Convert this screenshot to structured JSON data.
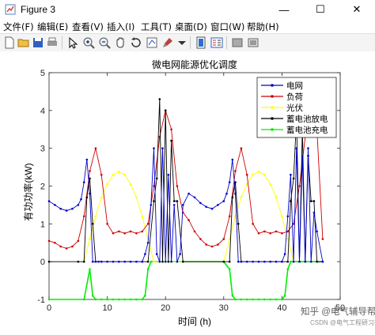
{
  "window": {
    "title": "Figure 3",
    "minimize": "—",
    "maximize": "☐",
    "close": "✕"
  },
  "menu": [
    "文件(F)",
    "编辑(E)",
    "查看(V)",
    "插入(I)",
    "工具(T)",
    "桌面(D)",
    "窗口(W)",
    "帮助(H)"
  ],
  "toolbar_icons": [
    "new-file-icon",
    "open-folder-icon",
    "save-icon",
    "print-icon",
    "pointer-icon",
    "zoom-in-icon",
    "zoom-out-icon",
    "pan-icon",
    "rotate-icon",
    "data-cursor-icon",
    "brush-icon",
    "colorbar-icon",
    "legend-icon",
    "hide-tools-icon",
    "show-tools-icon"
  ],
  "watermark": {
    "main": "知乎 @电气辅导帮",
    "sub": "CSDN @电气工程研习社"
  },
  "chart_data": {
    "type": "line",
    "title": "微电网能源优化调度",
    "xlabel": "时间 (h)",
    "ylabel": "有功功率(kW)",
    "xlim": [
      0,
      50
    ],
    "ylim": [
      -1,
      5
    ],
    "xticks": [
      0,
      10,
      20,
      30,
      40,
      50
    ],
    "yticks": [
      -1,
      0,
      1,
      2,
      3,
      4,
      5
    ],
    "legend_position": "top-right",
    "series": [
      {
        "name": "电网",
        "color": "#0000cc",
        "x": [
          0,
          1,
          2,
          3,
          4,
          5,
          5.5,
          6,
          6.5,
          7,
          7.5,
          8,
          8.5,
          9,
          10,
          11,
          12,
          13,
          14,
          15,
          16,
          16.5,
          17,
          17.5,
          18,
          18.5,
          19,
          19.5,
          20,
          20.5,
          21,
          21.5,
          22,
          22.5,
          23,
          24,
          25,
          26,
          27,
          28,
          29,
          30,
          30.5,
          31,
          31.5,
          32,
          32.5,
          33,
          34,
          35,
          36,
          37,
          38,
          39,
          40,
          40.5,
          41,
          41.5,
          42,
          42.5,
          43,
          43.5,
          44,
          44.5,
          45,
          45.5,
          46,
          47
        ],
        "y": [
          1.6,
          1.5,
          1.4,
          1.35,
          1.4,
          1.5,
          1.65,
          2.1,
          2.7,
          1.8,
          0,
          0,
          0,
          0,
          0,
          0,
          0,
          0,
          0,
          0,
          0,
          0.2,
          0.5,
          1.5,
          3.0,
          0.2,
          0,
          3.0,
          0,
          2.3,
          0,
          1.5,
          0,
          0.2,
          1.5,
          1.8,
          1.7,
          1.55,
          1.45,
          1.4,
          1.5,
          1.6,
          1.8,
          2.1,
          2.7,
          1.8,
          0,
          0,
          0,
          0,
          0,
          0,
          0,
          0,
          0,
          0.2,
          1.2,
          2.3,
          0,
          3.0,
          0,
          2.8,
          0,
          3.0,
          0,
          1.3,
          0.8,
          0
        ]
      },
      {
        "name": "负荷",
        "color": "#cc0000",
        "x": [
          0,
          1,
          2,
          3,
          4,
          5,
          6,
          7,
          8,
          9,
          10,
          11,
          12,
          13,
          14,
          15,
          16,
          17,
          18,
          19,
          20,
          21,
          22,
          23,
          24,
          25,
          26,
          27,
          28,
          29,
          30,
          31,
          32,
          33,
          34,
          35,
          36,
          37,
          38,
          39,
          40,
          41,
          42,
          43,
          44,
          45,
          46,
          47
        ],
        "y": [
          0.55,
          0.5,
          0.4,
          0.35,
          0.4,
          0.55,
          1.2,
          2.4,
          3.0,
          2.3,
          1.0,
          0.75,
          0.8,
          0.75,
          0.8,
          0.75,
          0.8,
          1.0,
          2.0,
          3.3,
          4.0,
          3.5,
          2.0,
          1.3,
          1.1,
          0.8,
          0.6,
          0.45,
          0.4,
          0.45,
          0.6,
          1.2,
          2.4,
          3.0,
          2.3,
          1.0,
          0.75,
          0.8,
          0.75,
          0.8,
          0.75,
          0.8,
          1.0,
          2.0,
          3.3,
          4.0,
          3.5,
          0.6
        ]
      },
      {
        "name": "光伏",
        "color": "#ffff00",
        "x": [
          6,
          7,
          8,
          9,
          10,
          11,
          12,
          13,
          14,
          15,
          16,
          17,
          18,
          30,
          31,
          32,
          33,
          34,
          35,
          36,
          37,
          38,
          39,
          40,
          41,
          42
        ],
        "y": [
          0,
          0.6,
          1.2,
          1.7,
          2.05,
          2.3,
          2.38,
          2.3,
          2.05,
          1.7,
          1.2,
          0.6,
          0,
          0,
          0.6,
          1.2,
          1.7,
          2.05,
          2.3,
          2.38,
          2.3,
          2.05,
          1.7,
          1.2,
          0.6,
          0
        ]
      },
      {
        "name": "蓄电池放电",
        "color": "#000000",
        "x": [
          0,
          5,
          6,
          6.5,
          7,
          7.5,
          8,
          9,
          16,
          17,
          18,
          18.5,
          19,
          19.5,
          20,
          20.5,
          21,
          21.5,
          22,
          23,
          30,
          31,
          31.5,
          32,
          32.5,
          33,
          40,
          41,
          41.5,
          42,
          42.5,
          43,
          43.5,
          44,
          44.5,
          45,
          45.5,
          46,
          47
        ],
        "y": [
          0,
          0,
          0,
          1.7,
          2.2,
          1.0,
          0,
          0,
          0,
          0,
          1.6,
          2.2,
          4.3,
          0,
          4.0,
          0,
          3.2,
          1.6,
          1.6,
          0,
          0,
          0,
          1.7,
          2.1,
          1.0,
          0,
          0,
          0,
          1.6,
          2.2,
          3.8,
          0,
          3.5,
          0,
          2.8,
          1.6,
          1.6,
          0,
          0
        ]
      },
      {
        "name": "蓄电池充电",
        "color": "#00ee00",
        "x": [
          0,
          6,
          7,
          7.5,
          8,
          9,
          10,
          11,
          12,
          13,
          14,
          15,
          16,
          16.5,
          17,
          17.5,
          18,
          19,
          23,
          30,
          31,
          31.5,
          32,
          33,
          34,
          35,
          36,
          37,
          38,
          39,
          40,
          40.5,
          41,
          41.5,
          42,
          47
        ],
        "y": [
          -1,
          -1,
          -0.2,
          -0.9,
          -1,
          -1,
          -1,
          -1,
          -1,
          -1,
          -1,
          -1,
          -1,
          -0.9,
          -0.2,
          0,
          0,
          0,
          0,
          0,
          -0.2,
          -0.9,
          -1,
          -1,
          -1,
          -1,
          -1,
          -1,
          -1,
          -1,
          -1,
          -0.9,
          -0.2,
          0,
          0,
          0
        ]
      }
    ]
  }
}
